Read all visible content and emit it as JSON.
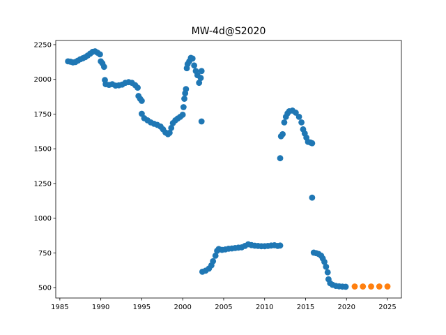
{
  "chart_data": {
    "type": "scatter",
    "title": "MW-4d@S2020",
    "xlabel": "",
    "ylabel": "",
    "xlim": [
      1984.5,
      2026.7
    ],
    "ylim": [
      425,
      2280
    ],
    "xticks": [
      1985,
      1990,
      1995,
      2000,
      2005,
      2010,
      2015,
      2020,
      2025
    ],
    "yticks": [
      500,
      750,
      1000,
      1250,
      1500,
      1750,
      2000,
      2250
    ],
    "grid": false,
    "legend": "none",
    "series": [
      {
        "color": "#1f77b4",
        "points": [
          [
            1986.0,
            2130
          ],
          [
            1986.3,
            2127
          ],
          [
            1986.6,
            2122
          ],
          [
            1986.9,
            2125
          ],
          [
            1987.2,
            2135
          ],
          [
            1987.5,
            2145
          ],
          [
            1987.8,
            2152
          ],
          [
            1988.1,
            2160
          ],
          [
            1988.4,
            2172
          ],
          [
            1988.7,
            2185
          ],
          [
            1989.0,
            2198
          ],
          [
            1989.3,
            2202
          ],
          [
            1989.6,
            2192
          ],
          [
            1989.9,
            2180
          ],
          [
            1990.0,
            2130
          ],
          [
            1990.2,
            2115
          ],
          [
            1990.4,
            2090
          ],
          [
            1990.5,
            1995
          ],
          [
            1990.6,
            1965
          ],
          [
            1991.0,
            1960
          ],
          [
            1991.4,
            1965
          ],
          [
            1991.8,
            1955
          ],
          [
            1992.2,
            1957
          ],
          [
            1992.6,
            1962
          ],
          [
            1993.0,
            1975
          ],
          [
            1993.4,
            1980
          ],
          [
            1993.8,
            1975
          ],
          [
            1994.2,
            1958
          ],
          [
            1994.5,
            1940
          ],
          [
            1994.6,
            1880
          ],
          [
            1994.8,
            1860
          ],
          [
            1995.0,
            1845
          ],
          [
            1995.0,
            1752
          ],
          [
            1995.3,
            1720
          ],
          [
            1995.7,
            1705
          ],
          [
            1996.1,
            1690
          ],
          [
            1996.5,
            1680
          ],
          [
            1996.9,
            1672
          ],
          [
            1997.3,
            1660
          ],
          [
            1997.6,
            1640
          ],
          [
            1997.9,
            1617
          ],
          [
            1998.2,
            1605
          ],
          [
            1998.4,
            1615
          ],
          [
            1998.6,
            1650
          ],
          [
            1998.8,
            1685
          ],
          [
            1999.1,
            1705
          ],
          [
            1999.4,
            1718
          ],
          [
            1999.7,
            1730
          ],
          [
            2000.0,
            1745
          ],
          [
            2000.1,
            1800
          ],
          [
            2000.2,
            1860
          ],
          [
            2000.3,
            1900
          ],
          [
            2000.4,
            1930
          ],
          [
            2000.5,
            2080
          ],
          [
            2000.6,
            2110
          ],
          [
            2000.8,
            2130
          ],
          [
            2001.0,
            2155
          ],
          [
            2001.2,
            2150
          ],
          [
            2001.4,
            2100
          ],
          [
            2001.6,
            2060
          ],
          [
            2001.8,
            2030
          ],
          [
            2002.0,
            1975
          ],
          [
            2002.2,
            2010
          ],
          [
            2002.3,
            2060
          ],
          [
            2002.3,
            1697
          ],
          [
            2002.4,
            614
          ],
          [
            2002.8,
            622
          ],
          [
            2003.2,
            637
          ],
          [
            2003.5,
            660
          ],
          [
            2003.7,
            690
          ],
          [
            2004.0,
            730
          ],
          [
            2004.2,
            765
          ],
          [
            2004.4,
            778
          ],
          [
            2004.8,
            772
          ],
          [
            2005.2,
            775
          ],
          [
            2005.6,
            780
          ],
          [
            2006.0,
            782
          ],
          [
            2006.4,
            785
          ],
          [
            2006.8,
            788
          ],
          [
            2007.2,
            790
          ],
          [
            2007.6,
            800
          ],
          [
            2008.0,
            812
          ],
          [
            2008.4,
            806
          ],
          [
            2008.8,
            802
          ],
          [
            2009.2,
            800
          ],
          [
            2009.6,
            798
          ],
          [
            2010.0,
            798
          ],
          [
            2010.4,
            800
          ],
          [
            2010.8,
            803
          ],
          [
            2011.2,
            805
          ],
          [
            2011.6,
            800
          ],
          [
            2011.9,
            803
          ],
          [
            2011.9,
            1432
          ],
          [
            2012.0,
            1590
          ],
          [
            2012.2,
            1605
          ],
          [
            2012.4,
            1690
          ],
          [
            2012.6,
            1730
          ],
          [
            2012.8,
            1755
          ],
          [
            2013.0,
            1770
          ],
          [
            2013.4,
            1775
          ],
          [
            2013.8,
            1760
          ],
          [
            2014.2,
            1730
          ],
          [
            2014.5,
            1690
          ],
          [
            2014.7,
            1640
          ],
          [
            2014.9,
            1610
          ],
          [
            2015.1,
            1580
          ],
          [
            2015.3,
            1550
          ],
          [
            2015.6,
            1545
          ],
          [
            2015.8,
            1540
          ],
          [
            2015.8,
            1148
          ],
          [
            2016.0,
            752
          ],
          [
            2016.3,
            748
          ],
          [
            2016.6,
            742
          ],
          [
            2016.9,
            730
          ],
          [
            2017.1,
            710
          ],
          [
            2017.3,
            685
          ],
          [
            2017.5,
            650
          ],
          [
            2017.7,
            610
          ],
          [
            2017.8,
            560
          ],
          [
            2018.0,
            532
          ],
          [
            2018.3,
            520
          ],
          [
            2018.7,
            512
          ],
          [
            2019.1,
            509
          ],
          [
            2019.5,
            507
          ],
          [
            2019.9,
            506
          ]
        ]
      },
      {
        "color": "#ff7f0e",
        "points": [
          [
            2021.0,
            508
          ],
          [
            2022.0,
            508
          ],
          [
            2023.0,
            508
          ],
          [
            2024.0,
            508
          ],
          [
            2025.0,
            508
          ]
        ]
      }
    ]
  }
}
